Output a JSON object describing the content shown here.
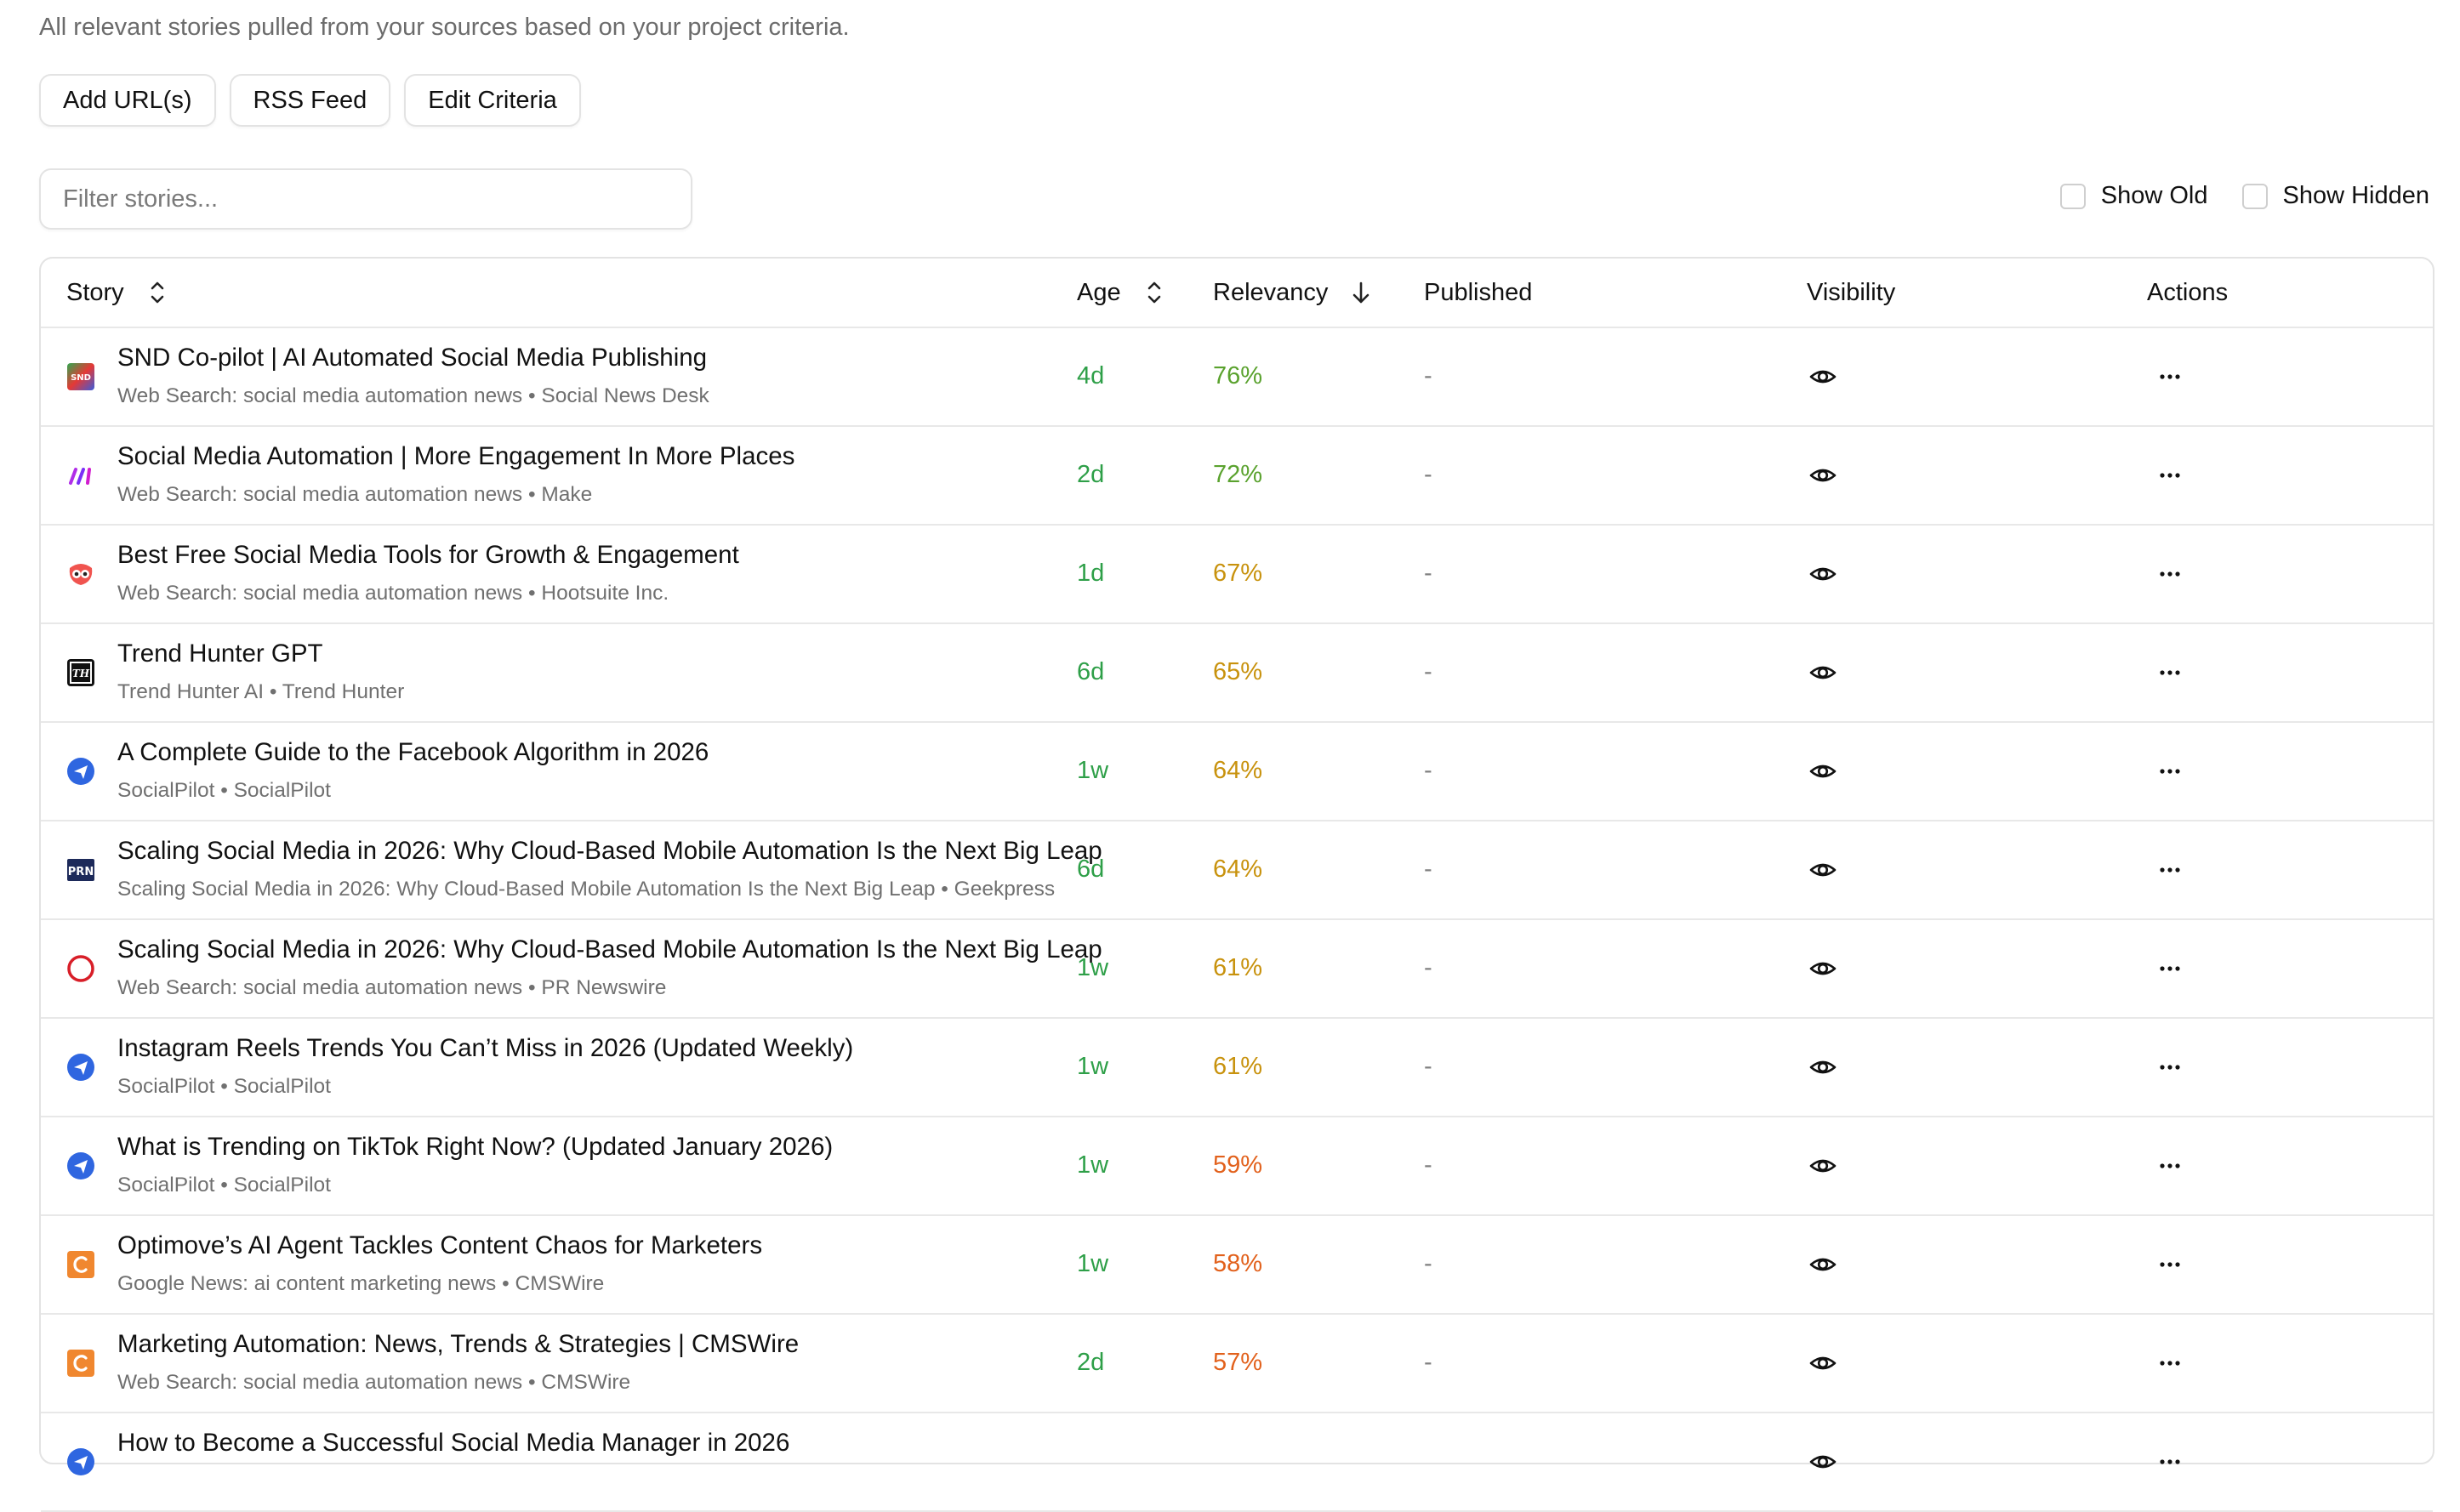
{
  "page": {
    "subtitle": "All relevant stories pulled from your sources based on your project criteria."
  },
  "toolbar": {
    "add_urls_label": "Add URL(s)",
    "rss_feed_label": "RSS Feed",
    "edit_criteria_label": "Edit Criteria"
  },
  "filter": {
    "placeholder": "Filter stories...",
    "value": "",
    "show_old_label": "Show Old",
    "show_old_checked": false,
    "show_hidden_label": "Show Hidden",
    "show_hidden_checked": false
  },
  "columns": {
    "story": "Story",
    "age": "Age",
    "relevancy": "Relevancy",
    "published": "Published",
    "visibility": "Visibility",
    "actions": "Actions"
  },
  "colors": {
    "age_green": "#2e9f48",
    "relevancy_high": "#5aa22e",
    "relevancy_mid": "#c8920d",
    "relevancy_low": "#e2611c"
  },
  "rows": [
    {
      "icon": "snd-favicon-icon",
      "title": "SND Co-pilot | AI Automated Social Media Publishing",
      "meta": "Web Search: social media automation news • Social News Desk",
      "age": "4d",
      "relevancy": "76%",
      "relevancy_color": "#5aa22e",
      "published": "-"
    },
    {
      "icon": "make-favicon-icon",
      "title": "Social Media Automation | More Engagement In More Places",
      "meta": "Web Search: social media automation news • Make",
      "age": "2d",
      "relevancy": "72%",
      "relevancy_color": "#5aa22e",
      "published": "-"
    },
    {
      "icon": "hootsuite-favicon-icon",
      "title": "Best Free Social Media Tools for Growth & Engagement",
      "meta": "Web Search: social media automation news • Hootsuite Inc.",
      "age": "1d",
      "relevancy": "67%",
      "relevancy_color": "#c8920d",
      "published": "-"
    },
    {
      "icon": "trend-hunter-favicon-icon",
      "title": "Trend Hunter GPT",
      "meta": "Trend Hunter AI • Trend Hunter",
      "age": "6d",
      "relevancy": "65%",
      "relevancy_color": "#c8920d",
      "published": "-"
    },
    {
      "icon": "socialpilot-favicon-icon",
      "title": "A Complete Guide to the Facebook Algorithm in 2026",
      "meta": "SocialPilot • SocialPilot",
      "age": "1w",
      "relevancy": "64%",
      "relevancy_color": "#c8920d",
      "published": "-"
    },
    {
      "icon": "prn-favicon-icon",
      "title": "Scaling Social Media in 2026: Why Cloud-Based Mobile Automation Is the Next Big Leap",
      "meta": "Scaling Social Media in 2026: Why Cloud-Based Mobile Automation Is the Next Big Leap • Geekpress",
      "age": "6d",
      "relevancy": "64%",
      "relevancy_color": "#c8920d",
      "published": "-"
    },
    {
      "icon": "pr-newswire-favicon-icon",
      "title": "Scaling Social Media in 2026: Why Cloud-Based Mobile Automation Is the Next Big Leap",
      "meta": "Web Search: social media automation news • PR Newswire",
      "age": "1w",
      "relevancy": "61%",
      "relevancy_color": "#c8920d",
      "published": "-"
    },
    {
      "icon": "socialpilot-favicon-icon",
      "title": "Instagram Reels Trends You Can’t Miss in 2026 (Updated Weekly)",
      "meta": "SocialPilot • SocialPilot",
      "age": "1w",
      "relevancy": "61%",
      "relevancy_color": "#c8920d",
      "published": "-"
    },
    {
      "icon": "socialpilot-favicon-icon",
      "title": "What is Trending on TikTok Right Now? (Updated January 2026)",
      "meta": "SocialPilot • SocialPilot",
      "age": "1w",
      "relevancy": "59%",
      "relevancy_color": "#e2611c",
      "published": "-"
    },
    {
      "icon": "cmswire-favicon-icon",
      "title": "Optimove’s AI Agent Tackles Content Chaos for Marketers",
      "meta": "Google News: ai content marketing news • CMSWire",
      "age": "1w",
      "relevancy": "58%",
      "relevancy_color": "#e2611c",
      "published": "-"
    },
    {
      "icon": "cmswire-favicon-icon",
      "title": "Marketing Automation: News, Trends & Strategies | CMSWire",
      "meta": "Web Search: social media automation news • CMSWire",
      "age": "2d",
      "relevancy": "57%",
      "relevancy_color": "#e2611c",
      "published": "-"
    },
    {
      "icon": "socialpilot-favicon-icon",
      "title": "How to Become a Successful Social Media Manager in 2026",
      "meta": "",
      "age": "",
      "relevancy": "",
      "relevancy_color": "#e2611c",
      "published": ""
    }
  ]
}
